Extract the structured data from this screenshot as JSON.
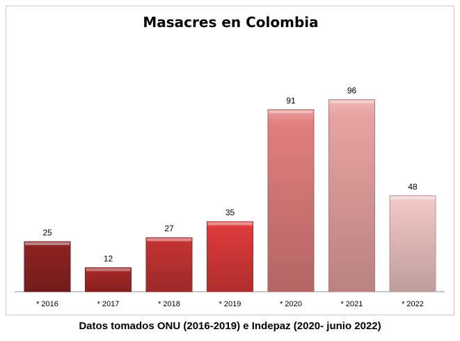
{
  "chart_data": {
    "type": "bar",
    "title": "Masacres en Colombia",
    "categories": [
      "* 2016",
      "* 2017",
      "* 2018",
      "* 2019",
      "* 2020",
      "* 2021",
      "* 2022"
    ],
    "values": [
      25,
      12,
      27,
      35,
      91,
      96,
      48
    ],
    "ylim": [
      0,
      100
    ],
    "grid": false,
    "legend": "none",
    "bar_colors": [
      "#8e2323",
      "#a82828",
      "#c43333",
      "#dc3a3a",
      "#e07e7e",
      "#e8a2a2",
      "#f0c4c4"
    ],
    "xlabel": "",
    "ylabel": ""
  },
  "footer": {
    "source": "Datos tomados ONU (2016-2019) e Indepaz (2020- junio 2022)"
  }
}
